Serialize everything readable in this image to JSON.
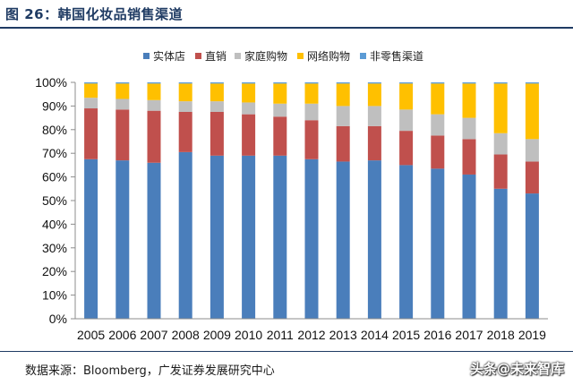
{
  "figure": {
    "title": "图 26：韩国化妆品销售渠道",
    "source": "数据来源：Bloomberg，广发证券发展研究中心",
    "watermark": "头条@未来智库"
  },
  "chart_data": {
    "type": "bar",
    "stacked": true,
    "categories": [
      "2005",
      "2006",
      "2007",
      "2008",
      "2009",
      "2010",
      "2011",
      "2012",
      "2013",
      "2014",
      "2015",
      "2016",
      "2017",
      "2018",
      "2019"
    ],
    "series": [
      {
        "name": "实体店",
        "color": "#4a7ebb",
        "values": [
          67.5,
          67,
          66,
          70.5,
          69,
          69,
          69,
          67.5,
          66.5,
          67,
          65,
          63.5,
          61,
          55,
          53
        ]
      },
      {
        "name": "直销",
        "color": "#c0504d",
        "values": [
          21.5,
          21.5,
          22,
          17,
          18.5,
          17.5,
          16.5,
          16.5,
          15,
          14.5,
          14.5,
          14,
          15,
          14.5,
          13.5
        ]
      },
      {
        "name": "家庭购物",
        "color": "#bfbfbf",
        "values": [
          4.5,
          4.5,
          4.5,
          4.5,
          4.5,
          5,
          5.5,
          7,
          8.5,
          8.5,
          9,
          9,
          9,
          9,
          9.5
        ]
      },
      {
        "name": "网络购物",
        "color": "#ffc000",
        "values": [
          6,
          6.5,
          7,
          7.5,
          7.5,
          8,
          8.5,
          8.5,
          9.5,
          9.5,
          11,
          13,
          14.5,
          21,
          23.5
        ]
      },
      {
        "name": "非零售渠道",
        "color": "#5b9bd5",
        "values": [
          0.5,
          0.5,
          0.5,
          0.5,
          0.5,
          0.5,
          0.5,
          0.5,
          0.5,
          0.5,
          0.5,
          0.5,
          0.5,
          0.5,
          0.5
        ]
      }
    ],
    "yticks": [
      "0%",
      "10%",
      "20%",
      "30%",
      "40%",
      "50%",
      "60%",
      "70%",
      "80%",
      "90%",
      "100%"
    ],
    "ylim": [
      0,
      100
    ],
    "legend_position": "top",
    "grid": false
  }
}
